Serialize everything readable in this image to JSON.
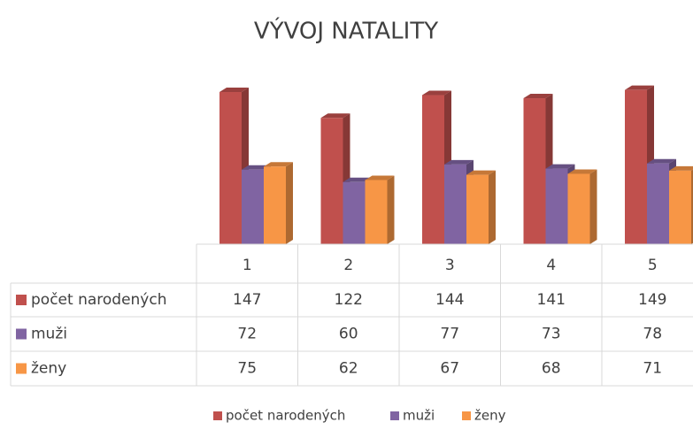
{
  "chart_data": {
    "type": "bar3d",
    "title": "VÝVOJ NATALITY",
    "categories": [
      "1",
      "2",
      "3",
      "4",
      "5"
    ],
    "series": [
      {
        "name": "počet narodených",
        "color": "#c0504d",
        "values": [
          147,
          122,
          144,
          141,
          149
        ]
      },
      {
        "name": "muži",
        "color": "#8064a2",
        "values": [
          72,
          60,
          77,
          73,
          78
        ]
      },
      {
        "name": "ženy",
        "color": "#f79646",
        "values": [
          75,
          62,
          67,
          68,
          71
        ]
      }
    ],
    "data_table": true,
    "legend": "bottom"
  }
}
